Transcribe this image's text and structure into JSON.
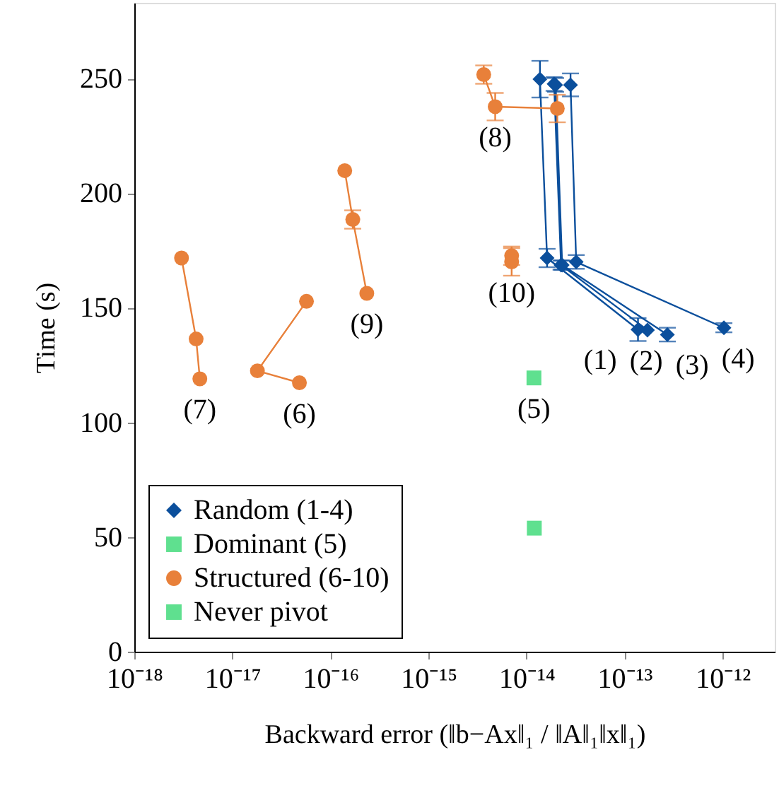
{
  "chart_data": {
    "type": "line",
    "xlabel": "Backward error (‖b−Ax‖₁ / ‖A‖₁‖x‖₁)",
    "ylabel": "Time (s)",
    "log": "x",
    "grid": false,
    "legend": "bottom left",
    "line_style": "solid",
    "xlim": [
      1e-18,
      3.4e-12
    ],
    "xticks": [
      {
        "value": 1e-18,
        "label": "10⁻¹⁸"
      },
      {
        "value": 1e-17,
        "label": "10⁻¹⁷"
      },
      {
        "value": 1e-16,
        "label": "10⁻¹⁶"
      },
      {
        "value": 1e-15,
        "label": "10⁻¹⁵"
      },
      {
        "value": 1e-14,
        "label": "10⁻¹⁴"
      },
      {
        "value": 1e-13,
        "label": "10⁻¹³"
      },
      {
        "value": 1e-12,
        "label": "10⁻¹²"
      }
    ],
    "ylim": [
      0,
      283
    ],
    "yticks": [
      0,
      50,
      100,
      150,
      200,
      250
    ],
    "series": [
      {
        "name": "Random (1-4)",
        "marker": "diamond",
        "color": "#0b4f9c",
        "x": [
          1.37e-14,
          1.62e-14,
          1.37e-13,
          null,
          1.91e-14,
          2.25e-14,
          1.71e-13,
          null,
          1.98e-14,
          2.31e-14,
          2.73e-13,
          null,
          2.81e-14,
          3.21e-14,
          1.03e-12
        ],
        "values": [
          249.7,
          171.7,
          140.5,
          null,
          247.6,
          168.6,
          140.3,
          null,
          247.2,
          168.6,
          138.3,
          null,
          247.2,
          170,
          141.3
        ],
        "errors": [
          8,
          4,
          5,
          null,
          3,
          2,
          null,
          null,
          3,
          2,
          3,
          null,
          5,
          3,
          2
        ]
      },
      {
        "name": "Dominant (5)",
        "type": "scatter",
        "marker": "square",
        "color": "#5fe08f",
        "x": [
          1.19e-14
        ],
        "values": [
          119.4
        ]
      },
      {
        "name": "Structured (6-10)",
        "marker": "circle",
        "color": "#e8803a",
        "x": [
          4.83e-17,
          1.8e-17,
          5.7e-17,
          null,
          3.03e-18,
          4.27e-18,
          4.66e-18,
          null,
          3.66e-15,
          4.79e-15,
          2.06e-14,
          null,
          1.4e-16,
          1.69e-16,
          2.35e-16,
          null,
          7.05e-15,
          null,
          7.05e-15
        ],
        "values": [
          117.3,
          122.5,
          152.8,
          null,
          171.7,
          136.4,
          119.0,
          null,
          251.7,
          237.7,
          236.9,
          null,
          209.8,
          188.5,
          156.3,
          null,
          172.7,
          null,
          170
        ],
        "errors": [
          null,
          null,
          null,
          null,
          null,
          null,
          null,
          null,
          4,
          6,
          6,
          null,
          null,
          4,
          null,
          null,
          4,
          null,
          6
        ]
      },
      {
        "name": "Never pivot",
        "type": "scatter",
        "marker": "square",
        "color": "#5fe08f",
        "x": [
          1.2e-14
        ],
        "values": [
          53.9
        ]
      }
    ],
    "annotations": [
      {
        "text": "(1)",
        "x": 1.37e-13,
        "y": 140.5
      },
      {
        "text": "(2)",
        "x": 1.71e-13,
        "y": 140.3
      },
      {
        "text": "(3)",
        "x": 2.73e-13,
        "y": 138.3
      },
      {
        "text": "(4)",
        "x": 1.03e-12,
        "y": 141.3
      },
      {
        "text": "(5)",
        "x": 1.19e-14,
        "y": 119.4
      },
      {
        "text": "(6)",
        "x": 4.83e-17,
        "y": 117.3
      },
      {
        "text": "(7)",
        "x": 4.66e-18,
        "y": 119.0
      },
      {
        "text": "(8)",
        "x": 4.79e-15,
        "y": 237.7
      },
      {
        "text": "(9)",
        "x": 2.35e-16,
        "y": 156.3
      },
      {
        "text": "(10)",
        "x": 7.05e-15,
        "y": 170
      }
    ]
  }
}
